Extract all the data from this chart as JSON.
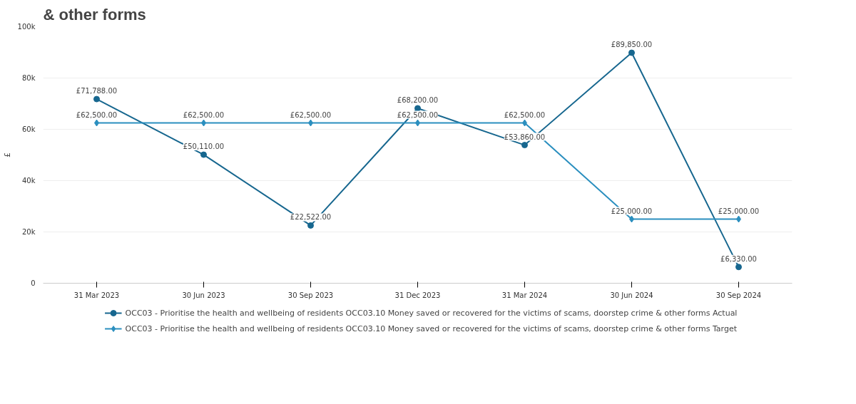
{
  "chart_data": {
    "type": "line",
    "title": "& other forms",
    "ylabel": "£",
    "categories": [
      "31 Mar 2023",
      "30 Jun 2023",
      "30 Sep 2023",
      "31 Dec 2023",
      "31 Mar 2024",
      "30 Jun 2024",
      "30 Sep 2024"
    ],
    "series": [
      {
        "name": "OCC03 - Prioritise the health and wellbeing of residents OCC03.10 Money saved or recovered for the victims of scams, doorstep crime & other forms Actual",
        "color": "#17678f",
        "marker": "circle",
        "values": [
          71788,
          50110,
          22522,
          68200,
          53860,
          89850,
          6330
        ],
        "value_labels": [
          "£71,788.00",
          "£50,110.00",
          "£22,522.00",
          "£68,200.00",
          "£53,860.00",
          "£89,850.00",
          "£6,330.00"
        ]
      },
      {
        "name": "OCC03 - Prioritise the health and wellbeing of residents OCC03.10 Money saved or recovered for the victims of scams, doorstep crime & other forms Target",
        "color": "#2b8fbf",
        "marker": "diamond",
        "values": [
          62500,
          62500,
          62500,
          62500,
          62500,
          25000,
          25000
        ],
        "value_labels": [
          "£62,500.00",
          "£62,500.00",
          "£62,500.00",
          "£62,500.00",
          "£62,500.00",
          "£25,000.00",
          "£25,000.00"
        ]
      }
    ],
    "ylim": [
      0,
      100000
    ],
    "yticks": [
      {
        "value": 0,
        "label": "0"
      },
      {
        "value": 20000,
        "label": "20k"
      },
      {
        "value": 40000,
        "label": "40k"
      },
      {
        "value": 60000,
        "label": "60k"
      },
      {
        "value": 80000,
        "label": "80k"
      },
      {
        "value": 100000,
        "label": "100k"
      }
    ],
    "grid": "y",
    "legend": "bottom"
  }
}
